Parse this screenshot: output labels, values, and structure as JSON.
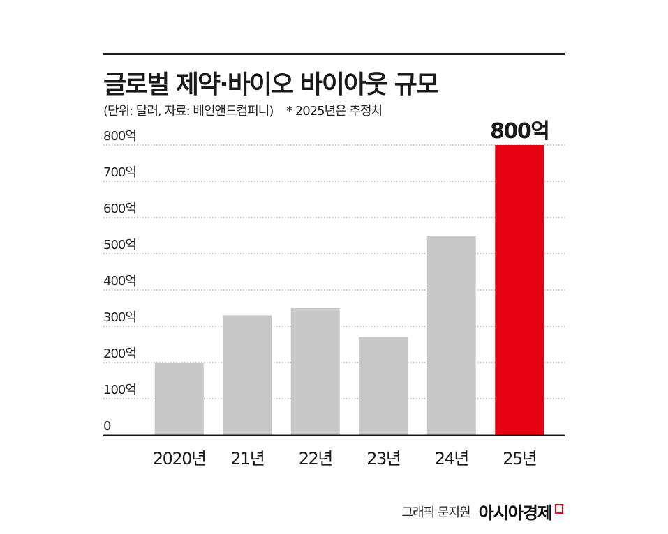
{
  "title": "글로벌 제약·바이오 바이아웃 규모",
  "subtitle": "(단위: 달러, 자료: 베인앤드컴퍼니)",
  "note": "* 2025년은 추정치",
  "credit": {
    "byline": "그래픽 문지원",
    "brand": "아시아경제"
  },
  "colors": {
    "bar": "#c8c8c8",
    "highlight": "#e60012",
    "grid": "#888888",
    "axis": "#1a1a1a"
  },
  "chart_data": {
    "type": "bar",
    "categories": [
      "2020년",
      "21년",
      "22년",
      "23년",
      "24년",
      "25년"
    ],
    "values": [
      200,
      330,
      350,
      270,
      550,
      800
    ],
    "highlight_index": 5,
    "highlight_label": "800억",
    "ylim": [
      0,
      800
    ],
    "yticks": [
      0,
      100,
      200,
      300,
      400,
      500,
      600,
      700,
      800
    ],
    "ytick_labels": [
      "0",
      "100억",
      "200억",
      "300억",
      "400억",
      "500억",
      "600억",
      "700억",
      "800억"
    ],
    "grid": true,
    "xlabel": "",
    "ylabel": ""
  }
}
